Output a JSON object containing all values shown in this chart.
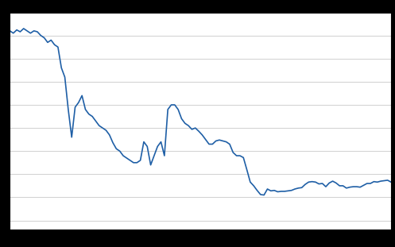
{
  "title": "",
  "line_color": "#1f5fa6",
  "line_width": 1.2,
  "background_color": "#ffffff",
  "outer_color": "#000000",
  "grid_color": "#d0d0d0",
  "xlim": [
    1900,
    2011
  ],
  "ylim": [
    0.8,
    5.5
  ],
  "years": [
    1900,
    1901,
    1902,
    1903,
    1904,
    1905,
    1906,
    1907,
    1908,
    1909,
    1910,
    1911,
    1912,
    1913,
    1914,
    1915,
    1916,
    1917,
    1918,
    1919,
    1920,
    1921,
    1922,
    1923,
    1924,
    1925,
    1926,
    1927,
    1928,
    1929,
    1930,
    1931,
    1932,
    1933,
    1934,
    1935,
    1936,
    1937,
    1938,
    1939,
    1940,
    1941,
    1942,
    1943,
    1944,
    1945,
    1946,
    1947,
    1948,
    1949,
    1950,
    1951,
    1952,
    1953,
    1954,
    1955,
    1956,
    1957,
    1958,
    1959,
    1960,
    1961,
    1962,
    1963,
    1964,
    1965,
    1966,
    1967,
    1968,
    1969,
    1970,
    1971,
    1972,
    1973,
    1974,
    1975,
    1976,
    1977,
    1978,
    1979,
    1980,
    1981,
    1982,
    1983,
    1984,
    1985,
    1986,
    1987,
    1988,
    1989,
    1990,
    1991,
    1992,
    1993,
    1994,
    1995,
    1996,
    1997,
    1998,
    1999,
    2000,
    2001,
    2002,
    2003,
    2004,
    2005,
    2006,
    2007,
    2008,
    2009,
    2010,
    2011
  ],
  "values": [
    5.1,
    5.05,
    5.12,
    5.08,
    5.15,
    5.1,
    5.05,
    5.1,
    5.08,
    5.0,
    4.95,
    4.85,
    4.9,
    4.8,
    4.75,
    4.3,
    4.1,
    3.4,
    2.8,
    3.45,
    3.55,
    3.7,
    3.4,
    3.3,
    3.25,
    3.15,
    3.05,
    3.0,
    2.95,
    2.85,
    2.68,
    2.55,
    2.5,
    2.4,
    2.35,
    2.3,
    2.25,
    2.25,
    2.3,
    2.7,
    2.6,
    2.2,
    2.4,
    2.6,
    2.7,
    2.4,
    3.4,
    3.5,
    3.5,
    3.4,
    3.2,
    3.1,
    3.05,
    2.97,
    3.0,
    2.93,
    2.85,
    2.75,
    2.65,
    2.65,
    2.72,
    2.74,
    2.72,
    2.7,
    2.65,
    2.47,
    2.4,
    2.4,
    2.36,
    2.1,
    1.83,
    1.75,
    1.65,
    1.56,
    1.55,
    1.68,
    1.64,
    1.65,
    1.62,
    1.63,
    1.63,
    1.64,
    1.65,
    1.68,
    1.7,
    1.71,
    1.78,
    1.83,
    1.84,
    1.83,
    1.79,
    1.8,
    1.73,
    1.81,
    1.85,
    1.81,
    1.75,
    1.75,
    1.7,
    1.72,
    1.73,
    1.73,
    1.72,
    1.76,
    1.8,
    1.8,
    1.84,
    1.83,
    1.85,
    1.86,
    1.87,
    1.83
  ],
  "grid_yticks": [
    1.0,
    1.5,
    2.0,
    2.5,
    3.0,
    3.5,
    4.0,
    4.5,
    5.0,
    5.5
  ]
}
